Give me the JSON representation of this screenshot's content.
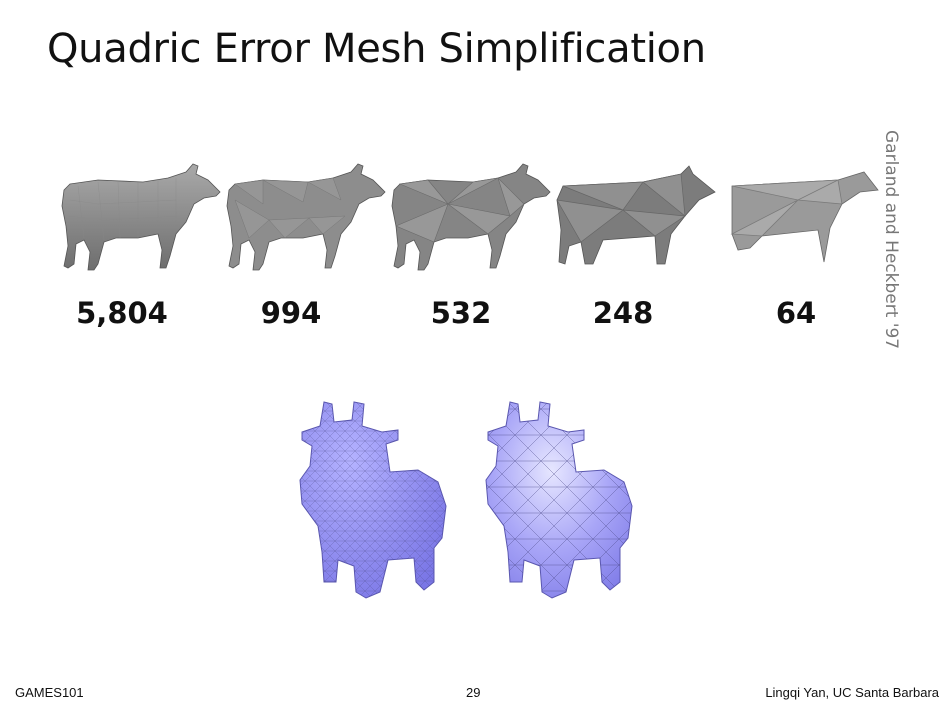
{
  "slide": {
    "title": "Quadric Error Mesh Simplification",
    "citation": "Garland and Heckbert '97",
    "triangle_counts": [
      "5,804",
      "994",
      "532",
      "248",
      "64"
    ]
  },
  "footer": {
    "course": "GAMES101",
    "page_number": "29",
    "author": "Lingqi Yan, UC Santa Barbara"
  },
  "colors": {
    "cow_mesh_gray": "#8a8a8a",
    "toy_mesh_blue": "#8c88f2"
  },
  "images": {
    "cow_images": [
      "cow-5804-mesh",
      "cow-994-mesh",
      "cow-532-mesh",
      "cow-248-mesh",
      "cow-64-mesh"
    ],
    "toy_images": [
      "toy-cow-dense-mesh",
      "toy-cow-simplified-mesh"
    ]
  }
}
